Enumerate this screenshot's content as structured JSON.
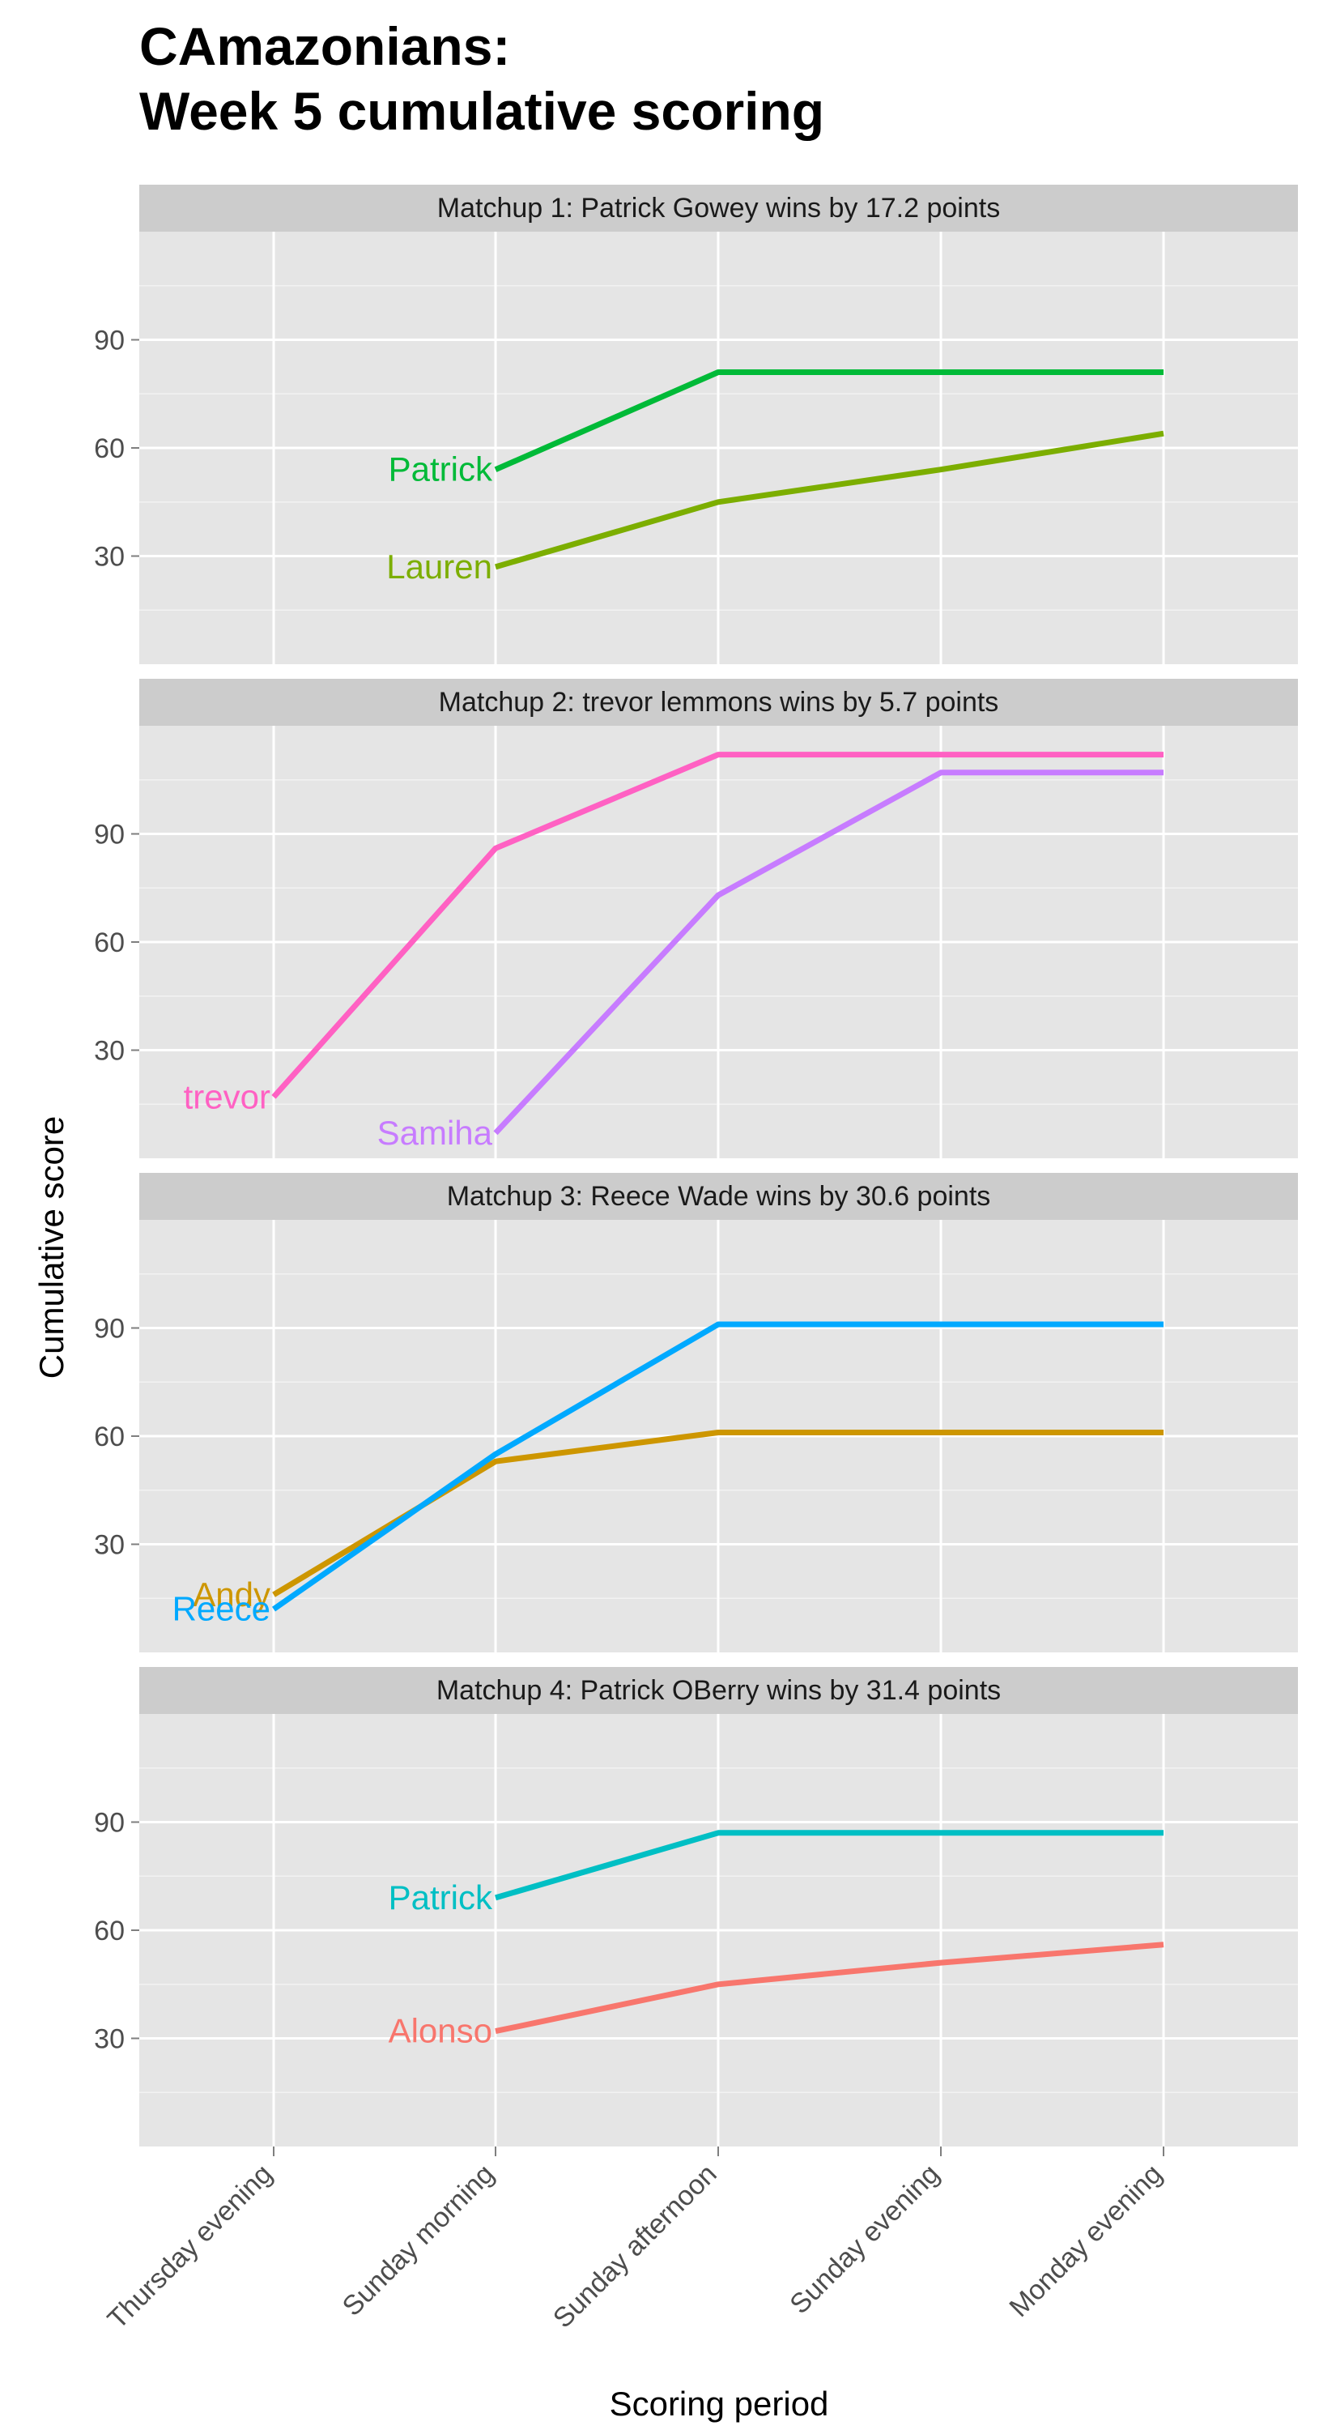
{
  "chart_data": {
    "type": "line",
    "title_lines": [
      "CAmazonians:",
      "Week 5 cumulative scoring"
    ],
    "xlabel": "Scoring period",
    "ylabel": "Cumulative score",
    "categories": [
      "Thursday evening",
      "Sunday morning",
      "Sunday afternoon",
      "Sunday evening",
      "Monday evening"
    ],
    "ylim": [
      0,
      120
    ],
    "yticks": [
      30,
      60,
      90
    ],
    "grid": true,
    "facets": [
      {
        "strip": "Matchup 1: Patrick Gowey wins by 17.2 points",
        "series": [
          {
            "name": "Patrick",
            "color": "#00BA38",
            "start_index": 1,
            "values": [
              54,
              81,
              81,
              81
            ]
          },
          {
            "name": "Lauren",
            "color": "#7CAE00",
            "start_index": 1,
            "values": [
              27,
              45,
              54,
              64
            ]
          }
        ]
      },
      {
        "strip": "Matchup 2: trevor lemmons wins by 5.7 points",
        "series": [
          {
            "name": "trevor",
            "color": "#FF61C3",
            "start_index": 0,
            "values": [
              17,
              86,
              112,
              112,
              112
            ]
          },
          {
            "name": "Samiha",
            "color": "#C77CFF",
            "start_index": 1,
            "values": [
              7,
              73,
              107,
              107
            ]
          }
        ]
      },
      {
        "strip": "Matchup 3: Reece Wade wins by 30.6 points",
        "series": [
          {
            "name": "Andy",
            "color": "#CD9600",
            "start_index": 0,
            "values": [
              16,
              53,
              61,
              61,
              61
            ]
          },
          {
            "name": "Reece",
            "color": "#00A9FF",
            "start_index": 0,
            "values": [
              12,
              55,
              91,
              91,
              91
            ]
          }
        ]
      },
      {
        "strip": "Matchup 4: Patrick OBerry wins by 31.4 points",
        "series": [
          {
            "name": "Patrick",
            "color": "#00BFC4",
            "start_index": 1,
            "values": [
              69,
              87,
              87,
              87
            ]
          },
          {
            "name": "Alonso",
            "color": "#F8766D",
            "start_index": 1,
            "values": [
              32,
              45,
              51,
              56
            ]
          }
        ]
      }
    ]
  }
}
